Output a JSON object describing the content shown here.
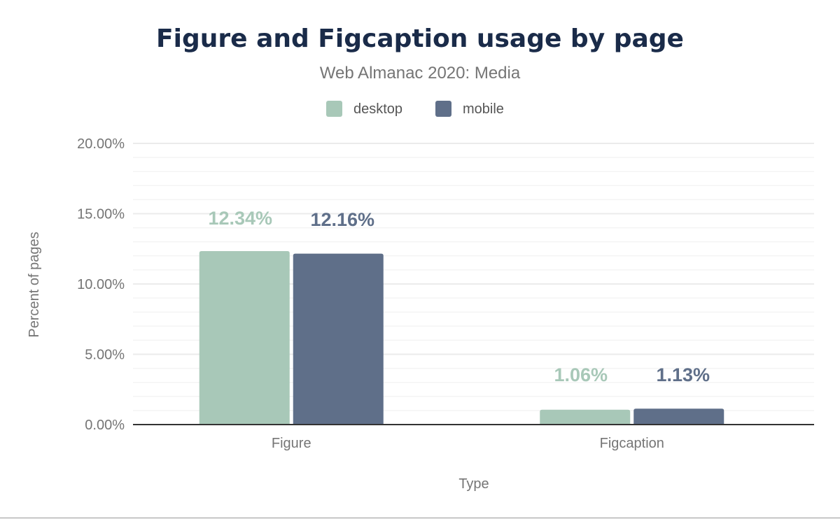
{
  "chart_data": {
    "type": "bar",
    "title": "Figure and Figcaption usage by page",
    "subtitle": "Web Almanac 2020: Media",
    "xlabel": "Type",
    "ylabel": "Percent of pages",
    "categories": [
      "Figure",
      "Figcaption"
    ],
    "series": [
      {
        "name": "desktop",
        "color": "#a8c8b8",
        "values": [
          12.34,
          1.06
        ],
        "labels": [
          "12.34%",
          "1.06%"
        ]
      },
      {
        "name": "mobile",
        "color": "#5f6f89",
        "values": [
          12.16,
          1.13
        ],
        "labels": [
          "12.16%",
          "1.13%"
        ]
      }
    ],
    "ylim": [
      0,
      20
    ],
    "yticks": [
      0,
      5,
      10,
      15,
      20
    ],
    "ytick_labels": [
      "0.00%",
      "5.00%",
      "10.00%",
      "15.00%",
      "20.00%"
    ],
    "grid": true,
    "minor_grid_step": 1,
    "legend_position": "top-center"
  }
}
